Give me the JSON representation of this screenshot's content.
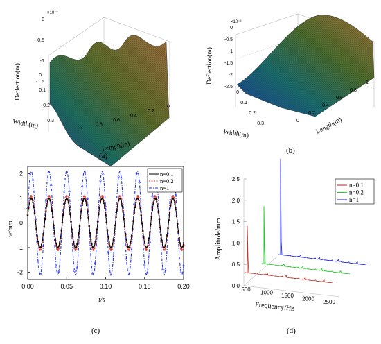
{
  "chart_data": [
    {
      "panel": "(a)",
      "type": "surface",
      "zlabel": "Deflection(m)",
      "zscale": "×10⁻³",
      "zticks": [
        "0",
        "-0.5",
        "-1",
        "-1.5"
      ],
      "xlabel": "Length(m)",
      "xticks": [
        "1",
        "0.8",
        "0.6",
        "0.4",
        "0.2",
        "0"
      ],
      "ylabel": "Width(m)",
      "yticks": [
        "0",
        "0.1",
        "0.2",
        "0.3"
      ]
    },
    {
      "panel": "(b)",
      "type": "surface",
      "zlabel": "Deflection(m)",
      "zscale": "×10⁻³",
      "zticks": [
        "0",
        "-0.5",
        "-1",
        "-1.5",
        "-2",
        "-2.5"
      ],
      "xlabel": "Length(m)",
      "xticks": [
        "0",
        "0.2",
        "0.4",
        "0.6",
        "0.8",
        "1"
      ],
      "ylabel": "Width(m)",
      "yticks": [
        "0",
        "0.1",
        "0.2",
        "0.3"
      ]
    },
    {
      "panel": "(c)",
      "type": "line",
      "xlabel": "t/s",
      "ylabel": "w/mm",
      "xlim": [
        0,
        0.2
      ],
      "ylim": [
        -2.3,
        2.3
      ],
      "xticks": [
        "0.00",
        "0.05",
        "0.10",
        "0.15",
        "0.20"
      ],
      "yticks": [
        "2",
        "1",
        "0",
        "-1",
        "-2"
      ],
      "legend_position": "top-right",
      "frequency_hz": 44,
      "series": [
        {
          "name": "n=0.1",
          "amplitude": 1.0,
          "color": "#000000"
        },
        {
          "name": "n=0.2",
          "amplitude": 1.1,
          "color": "#d03020"
        },
        {
          "name": "n=1",
          "amplitude": 2.1,
          "color": "#2233ee"
        }
      ]
    },
    {
      "panel": "(d)",
      "type": "line3d",
      "xlabel": "Frequency/Hz",
      "zlabel": "Amplitude/mm",
      "xticks": [
        "500",
        "1000",
        "1500",
        "2000",
        "2500"
      ],
      "zticks": [
        "2.5",
        "2.0",
        "1.5",
        "1.0",
        "0.5",
        "0.0"
      ],
      "zlim": [
        0,
        2.5
      ],
      "legend_position": "top-right",
      "series": [
        {
          "name": "n=0.1",
          "color": "#c0392b",
          "peak_amplitude": 1.1
        },
        {
          "name": "n=0.2",
          "color": "#22cc22",
          "peak_amplitude": 1.35
        },
        {
          "name": "n=1",
          "color": "#2222ee",
          "peak_amplitude": 2.25
        }
      ]
    }
  ],
  "captions": {
    "a": "(a)",
    "b": "(b)",
    "c": "(c)",
    "d": "(d)"
  },
  "legend_prefix": "n"
}
